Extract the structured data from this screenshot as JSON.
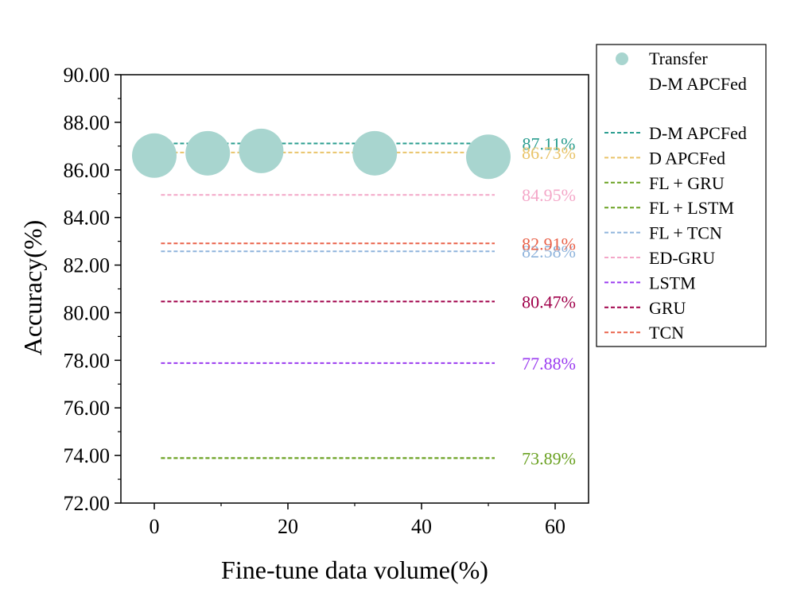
{
  "chart_data": {
    "type": "scatter",
    "xlabel": "Fine-tune data volume(%)",
    "ylabel": "Accuracy(%)",
    "xlim": [
      -5,
      65
    ],
    "ylim": [
      72,
      90
    ],
    "x_ticks": [
      0,
      20,
      40,
      60
    ],
    "y_ticks": [
      72,
      74,
      76,
      78,
      80,
      82,
      84,
      86,
      88,
      90
    ],
    "y_tick_labels": [
      "72.00",
      "74.00",
      "76.00",
      "78.00",
      "80.00",
      "82.00",
      "84.00",
      "86.00",
      "88.00",
      "90.00"
    ],
    "scatter_series": {
      "name": "Transfer D-M APCFed",
      "name_lines": [
        "Transfer",
        "D-M APCFed"
      ],
      "color": "#a8d5cf",
      "points": [
        {
          "x": 0,
          "y": 86.6
        },
        {
          "x": 8,
          "y": 86.7
        },
        {
          "x": 16,
          "y": 86.8
        },
        {
          "x": 33,
          "y": 86.7
        },
        {
          "x": 50,
          "y": 86.55
        }
      ]
    },
    "line_series": [
      {
        "name": "D-M APCFed",
        "value": 87.11,
        "label": "87.11%",
        "color": "#2a9d8f",
        "x_range": [
          1,
          50
        ]
      },
      {
        "name": "D APCFed",
        "value": 86.73,
        "label": "86.73%",
        "color": "#e9c46a",
        "x_range": [
          1,
          50
        ]
      },
      {
        "name": "FL  + GRU",
        "value": 73.89,
        "label": "73.89%",
        "color": "#6aa121",
        "x_range": [
          1,
          50
        ]
      },
      {
        "name": "FL  + LSTM",
        "value": 73.89,
        "label": "",
        "color": "#6aa121",
        "x_range": [
          1,
          50
        ]
      },
      {
        "name": "FL  + TCN",
        "value": 82.58,
        "label": "82.58%",
        "color": "#8fb4dc",
        "x_range": [
          1,
          50
        ]
      },
      {
        "name": "ED-GRU",
        "value": 84.95,
        "label": "84.95%",
        "color": "#f4a7c8",
        "x_range": [
          1,
          50
        ]
      },
      {
        "name": "LSTM",
        "value": 77.88,
        "label": "77.88%",
        "color": "#9b3cf0",
        "x_range": [
          1,
          50
        ]
      },
      {
        "name": "GRU",
        "value": 80.47,
        "label": "80.47%",
        "color": "#a0004a",
        "x_range": [
          1,
          50
        ]
      },
      {
        "name": "TCN",
        "value": 82.91,
        "label": "82.91%",
        "color": "#e9624a",
        "x_range": [
          1,
          50
        ]
      }
    ],
    "legend_position": "right",
    "grid": false
  }
}
